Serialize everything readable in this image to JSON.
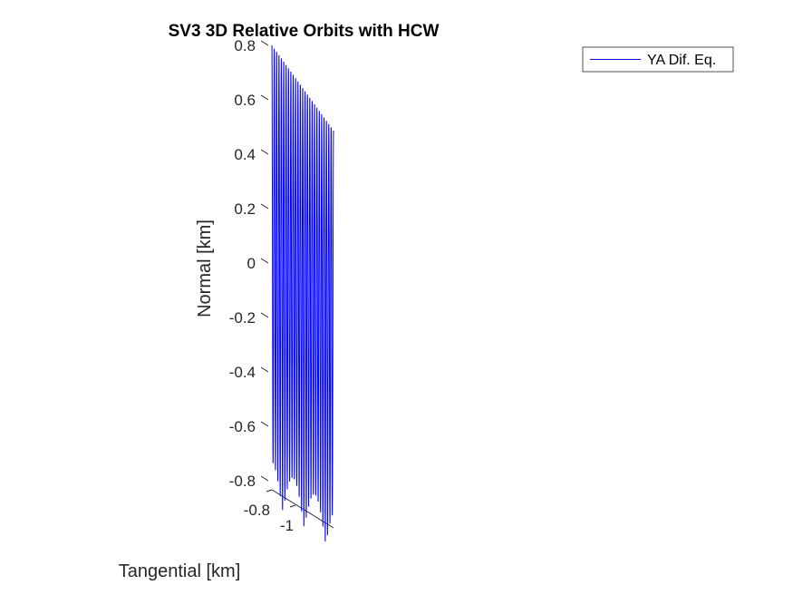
{
  "chart_data": {
    "type": "line",
    "title": "SV3 3D Relative Orbits with HCW",
    "zlabel": "Normal [km]",
    "xlabel": "Tangential [km]",
    "zlim": [
      -0.9,
      0.8
    ],
    "z_ticks": [
      "0.8",
      "0.6",
      "0.4",
      "0.2",
      "0",
      "-0.2",
      "-0.4",
      "-0.6",
      "-0.8"
    ],
    "z_tick_values": [
      0.8,
      0.6,
      0.4,
      0.2,
      0,
      -0.2,
      -0.4,
      -0.6,
      -0.8
    ],
    "x_ticks": [
      "-0.8",
      "-1"
    ],
    "x_tick_values": [
      -0.8,
      -1.0
    ],
    "xlim": [
      -1.1,
      -0.75
    ],
    "legend_position": "top-right",
    "grid": false,
    "series": [
      {
        "name": "YA Dif. Eq.",
        "color": "#0000ff",
        "tangential_start": -0.75,
        "tangential_end": -1.1,
        "normal_amplitude_start": 0.8,
        "normal_amplitude_end": 0.66,
        "normal_min": -0.88,
        "cycles": 26
      }
    ]
  }
}
